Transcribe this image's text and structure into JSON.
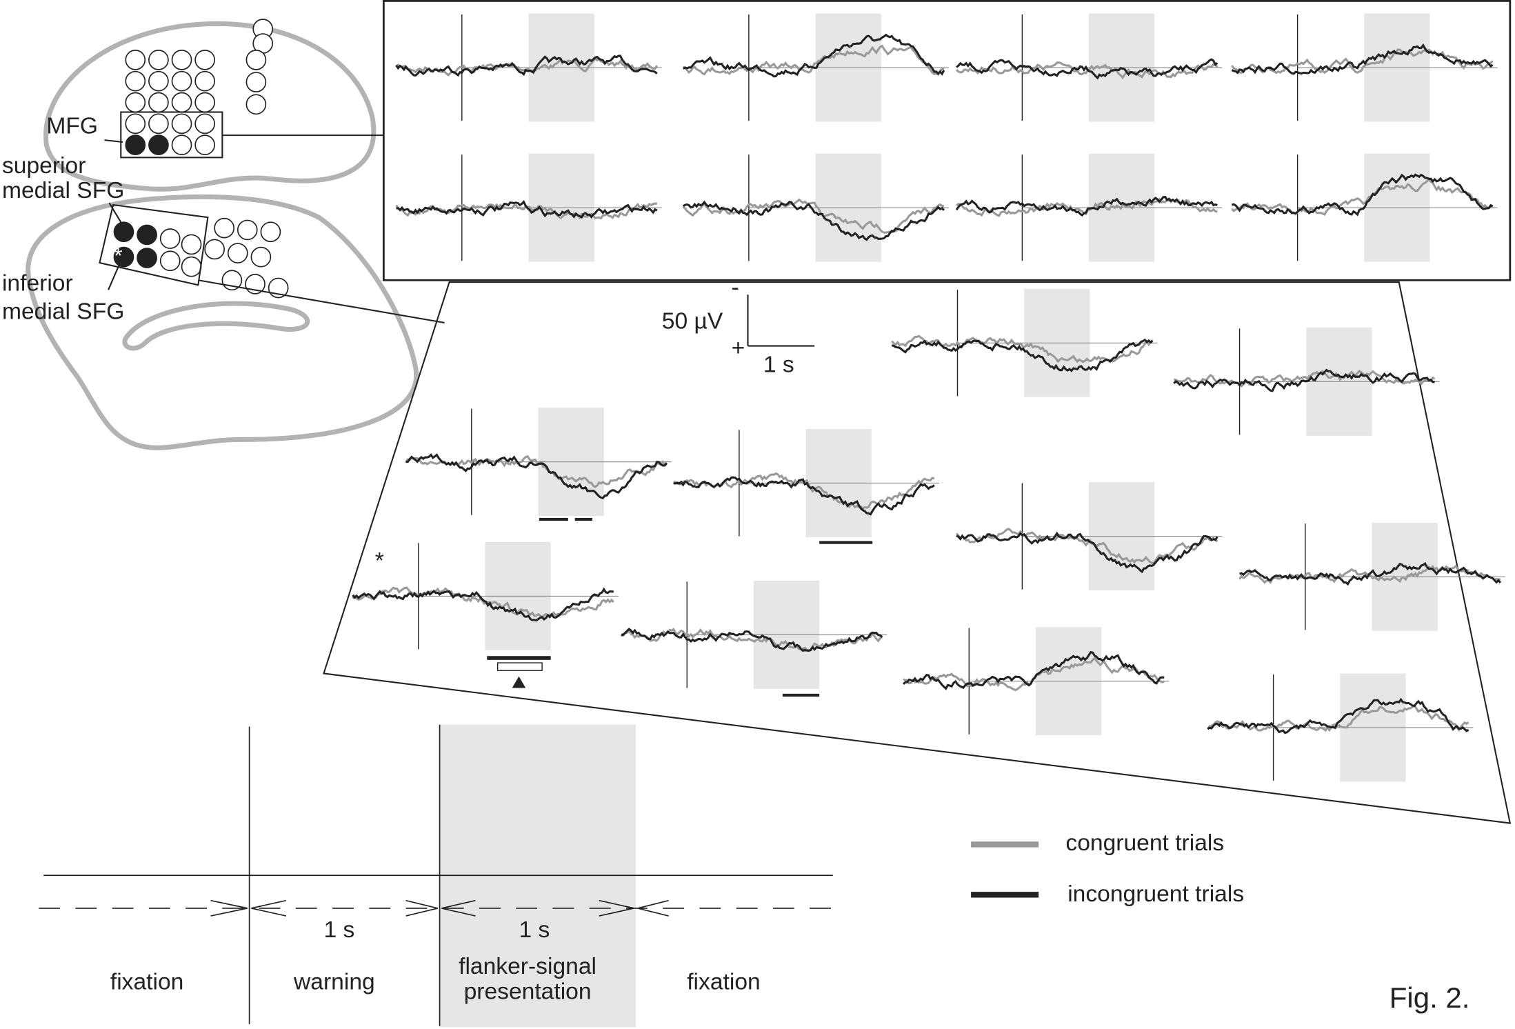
{
  "brain_labels": {
    "mfg": "MFG",
    "superior": [
      "superior",
      "medial SFG"
    ],
    "inferior": [
      "inferior",
      "medial SFG"
    ],
    "electrode_asterisk": "*"
  },
  "scale_bar": {
    "negative": "-",
    "positive": "+",
    "amplitude": "50 µV",
    "time": "1 s"
  },
  "trace_marker": "*",
  "legend": {
    "items": [
      {
        "label": "congruent trials",
        "color": "#999999"
      },
      {
        "label": "incongruent trials",
        "color": "#222222"
      }
    ]
  },
  "timeline": {
    "durations": [
      "1 s",
      "1 s"
    ],
    "phases": [
      {
        "lines": [
          "fixation"
        ]
      },
      {
        "lines": [
          "warning"
        ]
      },
      {
        "lines": [
          "flanker-signal",
          "presentation"
        ]
      },
      {
        "lines": [
          "fixation"
        ]
      }
    ]
  },
  "figure_label": "Fig. 2."
}
